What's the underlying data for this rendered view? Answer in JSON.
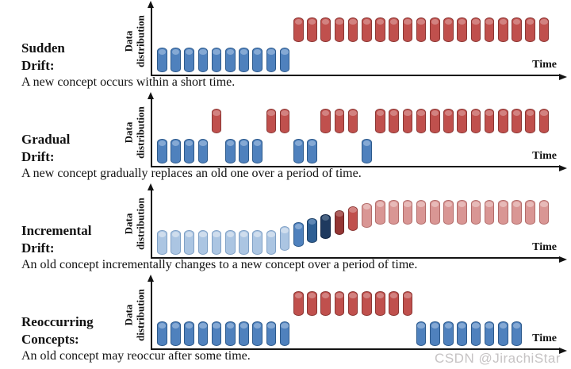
{
  "figure": {
    "axis": {
      "y_label": "Data distribution",
      "x_label": "Time"
    },
    "watermark": "CSDN @JirachiStar",
    "palette": {
      "blue": {
        "body": "#4f81bd",
        "border": "#2d5a8c",
        "cap": "#85a9d4"
      },
      "red": {
        "body": "#c0504d",
        "border": "#8b3734",
        "cap": "#d28280"
      },
      "lightblue": {
        "body": "#abc5e2",
        "border": "#7fa0c5",
        "cap": "#cfdded"
      },
      "lightred": {
        "body": "#d99694",
        "border": "#b26c6a",
        "cap": "#e7bab8"
      },
      "darkblue": {
        "body": "#2e5f94",
        "border": "#1d4066",
        "cap": "#5f87b4"
      },
      "navy": {
        "body": "#1f3a5f",
        "border": "#122543",
        "cap": "#4c6685"
      },
      "darkred": {
        "body": "#943634",
        "border": "#662221",
        "cap": "#af605e"
      }
    },
    "panels": [
      {
        "title_line1": "Sudden",
        "title_line2": "Drift:",
        "caption": "A new concept occurs within a short time.",
        "bars": [
          [
            "blue",
            0,
            10
          ],
          [
            "red",
            1,
            19
          ]
        ]
      },
      {
        "title_line1": "Gradual",
        "title_line2": "Drift:",
        "caption": "A new concept gradually replaces an old one over a period of time.",
        "bars": [
          [
            "blue",
            0,
            4
          ],
          [
            "red",
            1,
            1
          ],
          [
            "blue",
            0,
            3
          ],
          [
            "red",
            1,
            2
          ],
          [
            "blue",
            0,
            2
          ],
          [
            "red",
            1,
            3
          ],
          [
            "blue",
            0,
            1
          ],
          [
            "red",
            1,
            13
          ]
        ]
      },
      {
        "title_line1": "Incremental",
        "title_line2": "Drift:",
        "caption": "An old concept incrementally changes to a new concept over a period of time.",
        "bars": [
          [
            "lightblue",
            0,
            9
          ],
          [
            "lightblue",
            0.12,
            1
          ],
          [
            "blue",
            0.26,
            1
          ],
          [
            "darkblue",
            0.4,
            1
          ],
          [
            "navy",
            0.53,
            1
          ],
          [
            "darkred",
            0.66,
            1
          ],
          [
            "red",
            0.79,
            1
          ],
          [
            "lightred",
            0.9,
            1
          ],
          [
            "lightred",
            1,
            13
          ]
        ]
      },
      {
        "title_line1": "Reoccurring",
        "title_line2": "Concepts:",
        "caption": "An old concept may reoccur after some time.",
        "bars": [
          [
            "blue",
            0,
            10
          ],
          [
            "red",
            1,
            9
          ],
          [
            "blue",
            0,
            8
          ]
        ]
      }
    ]
  }
}
